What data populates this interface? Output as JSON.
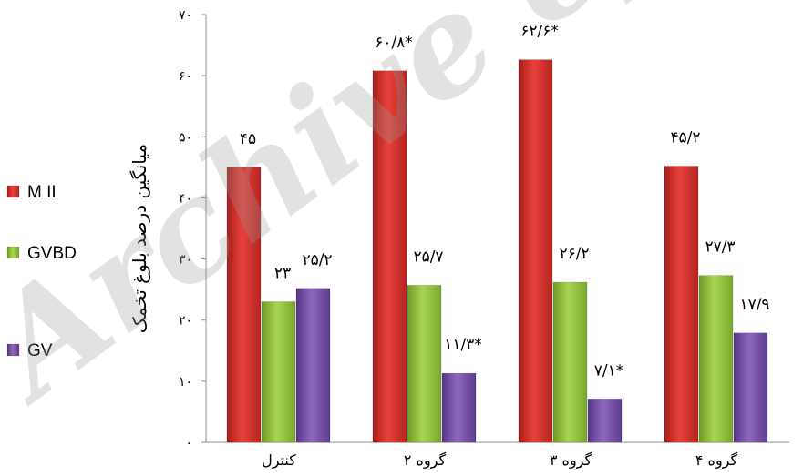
{
  "chart_data": {
    "type": "bar",
    "title": "",
    "ylabel": "میانگین درصد بلوغ تخمک",
    "xlabel": "",
    "categories": [
      "کنترل",
      "گروه ۲",
      "گروه ۳",
      "گروه ۴"
    ],
    "ylim": [
      0,
      70
    ],
    "yticks": [
      0,
      10,
      20,
      30,
      40,
      50,
      60,
      70
    ],
    "ytick_labels": [
      "۰",
      "۱۰",
      "۲۰",
      "۳۰",
      "۴۰",
      "۵۰",
      "۶۰",
      "۷۰"
    ],
    "grid": false,
    "legend_position": "left",
    "series": [
      {
        "name": "M II",
        "color": "#d8322d",
        "values": [
          45,
          60.8,
          62.6,
          45.2
        ],
        "labels": [
          "۴۵",
          "۶۰/۸*",
          "۶۲/۶*",
          "۴۵/۲"
        ]
      },
      {
        "name": "GVBD",
        "color": "#94c33f",
        "values": [
          23,
          25.7,
          26.2,
          27.3
        ],
        "labels": [
          "۲۳",
          "۲۵/۷",
          "۲۶/۲",
          "۲۷/۳"
        ]
      },
      {
        "name": "GV",
        "color": "#7a54a8",
        "values": [
          25.2,
          11.3,
          7.1,
          17.9
        ],
        "labels": [
          "۲۵/۲",
          "۱۱/۳*",
          "۷/۱*",
          "۱۷/۹"
        ]
      }
    ],
    "watermark": "Archive of SID"
  }
}
